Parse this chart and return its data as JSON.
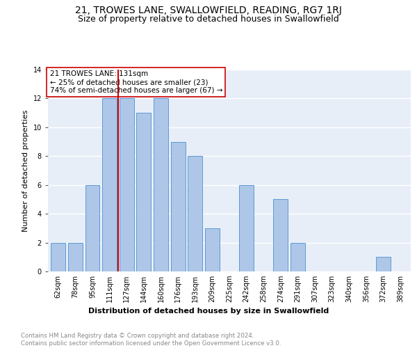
{
  "title": "21, TROWES LANE, SWALLOWFIELD, READING, RG7 1RJ",
  "subtitle": "Size of property relative to detached houses in Swallowfield",
  "xlabel": "Distribution of detached houses by size in Swallowfield",
  "ylabel": "Number of detached properties",
  "footnote1": "Contains HM Land Registry data © Crown copyright and database right 2024.",
  "footnote2": "Contains public sector information licensed under the Open Government Licence v3.0.",
  "bar_labels": [
    "62sqm",
    "78sqm",
    "95sqm",
    "111sqm",
    "127sqm",
    "144sqm",
    "160sqm",
    "176sqm",
    "193sqm",
    "209sqm",
    "225sqm",
    "242sqm",
    "258sqm",
    "274sqm",
    "291sqm",
    "307sqm",
    "323sqm",
    "340sqm",
    "356sqm",
    "372sqm",
    "389sqm"
  ],
  "bar_values": [
    2,
    2,
    6,
    12,
    12,
    11,
    12,
    9,
    8,
    3,
    0,
    6,
    0,
    5,
    2,
    0,
    0,
    0,
    0,
    1,
    0
  ],
  "bar_color": "#aec6e8",
  "bar_edge_color": "#5b9bd5",
  "vline_x": 3.5,
  "vline_color": "#cc0000",
  "annotation_text": "21 TROWES LANE: 131sqm\n← 25% of detached houses are smaller (23)\n74% of semi-detached houses are larger (67) →",
  "annotation_box_edgecolor": "#cc0000",
  "ylim": [
    0,
    14
  ],
  "background_color": "#e8eef8",
  "grid_color": "#ffffff",
  "title_fontsize": 10,
  "subtitle_fontsize": 9,
  "axis_label_fontsize": 8,
  "tick_fontsize": 7,
  "annotation_fontsize": 7.5,
  "footnote_fontsize": 6.2
}
